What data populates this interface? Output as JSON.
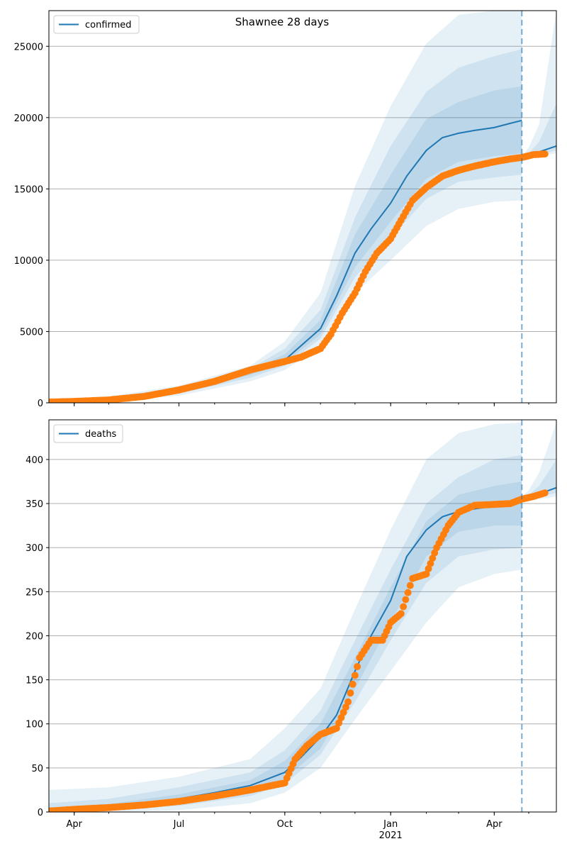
{
  "chart_data": [
    {
      "type": "line",
      "title": "Shawnee 28 days",
      "ylim": [
        0,
        27500
      ],
      "yticks": [
        0,
        5000,
        10000,
        15000,
        20000,
        25000
      ],
      "grid": "y",
      "legend": "top-left",
      "x_start": "2020-03-10",
      "x_end": "2021-05-25",
      "forecast_start": "2021-04-25",
      "xtick_labels": [
        "Apr",
        "Jul",
        "Oct",
        "Jan",
        "Apr"
      ],
      "xtick_sublabels": [
        "",
        "",
        "",
        "2021",
        ""
      ],
      "colors": {
        "model": "#1f77b4",
        "observed": "#ff7f0e"
      },
      "series": [
        {
          "name": "confirmed",
          "kind": "model-median",
          "x": [
            "2020-03-10",
            "2020-04-01",
            "2020-05-01",
            "2020-06-01",
            "2020-07-01",
            "2020-08-01",
            "2020-09-01",
            "2020-10-01",
            "2020-10-15",
            "2020-11-01",
            "2020-11-15",
            "2020-12-01",
            "2020-12-15",
            "2021-01-01",
            "2021-01-15",
            "2021-02-01",
            "2021-02-15",
            "2021-03-01",
            "2021-03-15",
            "2021-04-01",
            "2021-04-15",
            "2021-04-25"
          ],
          "values": [
            50,
            120,
            250,
            450,
            900,
            1600,
            2200,
            3000,
            4000,
            5200,
            7500,
            10500,
            12200,
            14000,
            15900,
            17700,
            18600,
            18900,
            19100,
            19300,
            19600,
            19800
          ]
        },
        {
          "name": "",
          "kind": "model-continuation",
          "x": [
            "2021-04-25",
            "2021-05-01",
            "2021-05-10",
            "2021-05-25"
          ],
          "values": [
            17200,
            17300,
            17600,
            18000
          ]
        },
        {
          "name": "",
          "kind": "observed",
          "x": [
            "2020-03-10",
            "2020-04-01",
            "2020-05-01",
            "2020-06-01",
            "2020-07-01",
            "2020-08-01",
            "2020-09-01",
            "2020-10-01",
            "2020-10-15",
            "2020-11-01",
            "2020-11-10",
            "2020-11-20",
            "2020-12-01",
            "2020-12-10",
            "2020-12-20",
            "2021-01-01",
            "2021-01-10",
            "2021-01-20",
            "2021-02-01",
            "2021-02-15",
            "2021-03-01",
            "2021-03-15",
            "2021-04-01",
            "2021-04-15",
            "2021-04-25",
            "2021-05-05",
            "2021-05-15"
          ],
          "values": [
            50,
            100,
            200,
            450,
            900,
            1500,
            2300,
            2900,
            3200,
            3800,
            4800,
            6300,
            7700,
            9200,
            10500,
            11500,
            12800,
            14200,
            15100,
            15900,
            16300,
            16600,
            16900,
            17100,
            17200,
            17400,
            17450
          ]
        }
      ],
      "bands": [
        {
          "x": [
            "2020-03-10",
            "2020-05-01",
            "2020-07-01",
            "2020-09-01",
            "2020-10-01",
            "2020-11-01",
            "2020-12-01",
            "2021-01-01",
            "2021-02-01",
            "2021-03-01",
            "2021-04-01",
            "2021-04-25"
          ],
          "lower": [
            0,
            150,
            500,
            1500,
            2300,
            4000,
            7700,
            10000,
            12400,
            13600,
            14100,
            14200
          ],
          "upper": [
            200,
            450,
            1200,
            2600,
            4300,
            7700,
            15200,
            20800,
            25200,
            27200,
            27500,
            27500
          ],
          "opacity": 0.11
        },
        {
          "x": [
            "2020-03-10",
            "2020-05-01",
            "2020-07-01",
            "2020-09-01",
            "2020-10-01",
            "2020-11-01",
            "2020-12-01",
            "2021-01-01",
            "2021-02-01",
            "2021-03-01",
            "2021-04-01",
            "2021-04-25"
          ],
          "lower": [
            20,
            190,
            650,
            1750,
            2600,
            4500,
            8800,
            11600,
            14300,
            15500,
            15800,
            16000
          ],
          "upper": [
            150,
            370,
            1050,
            2400,
            3800,
            6500,
            13000,
            18000,
            21800,
            23500,
            24300,
            24800
          ],
          "opacity": 0.11
        },
        {
          "x": [
            "2020-03-10",
            "2020-05-01",
            "2020-07-01",
            "2020-09-01",
            "2020-10-01",
            "2020-11-01",
            "2020-12-01",
            "2021-01-01",
            "2021-02-01",
            "2021-03-01",
            "2021-04-01",
            "2021-04-25"
          ],
          "lower": [
            35,
            215,
            770,
            1950,
            2800,
            4800,
            9500,
            12700,
            15700,
            16900,
            17300,
            17500
          ],
          "upper": [
            100,
            310,
            950,
            2250,
            3400,
            5800,
            11800,
            16000,
            19900,
            21100,
            21900,
            22200
          ],
          "opacity": 0.11
        },
        {
          "x": [
            "2021-04-25",
            "2021-05-01",
            "2021-05-10",
            "2021-05-25"
          ],
          "lower": [
            17100,
            17150,
            17300,
            17500
          ],
          "upper": [
            17300,
            17900,
            19500,
            27500
          ],
          "opacity": 0.11
        },
        {
          "x": [
            "2021-04-25",
            "2021-05-01",
            "2021-05-10",
            "2021-05-25"
          ],
          "lower": [
            17150,
            17200,
            17400,
            17700
          ],
          "upper": [
            17250,
            17500,
            18300,
            21000
          ],
          "opacity": 0.11
        }
      ]
    },
    {
      "type": "line",
      "title": "",
      "ylim": [
        0,
        445
      ],
      "yticks": [
        0,
        50,
        100,
        150,
        200,
        250,
        300,
        350,
        400
      ],
      "grid": "y",
      "legend": "top-left",
      "x_start": "2020-03-10",
      "x_end": "2021-05-25",
      "forecast_start": "2021-04-25",
      "xtick_labels": [
        "Apr",
        "Jul",
        "Oct",
        "Jan",
        "Apr"
      ],
      "xtick_sublabels": [
        "",
        "",
        "",
        "2021",
        ""
      ],
      "colors": {
        "model": "#1f77b4",
        "observed": "#ff7f0e"
      },
      "series": [
        {
          "name": "deaths",
          "kind": "model-median",
          "x": [
            "2020-03-10",
            "2020-04-01",
            "2020-05-01",
            "2020-06-01",
            "2020-07-01",
            "2020-08-01",
            "2020-09-01",
            "2020-10-01",
            "2020-10-15",
            "2020-11-01",
            "2020-11-15",
            "2020-12-01",
            "2020-12-15",
            "2021-01-01",
            "2021-01-15",
            "2021-02-01",
            "2021-02-15",
            "2021-03-01",
            "2021-03-15",
            "2021-04-01",
            "2021-04-15",
            "2021-04-25"
          ],
          "values": [
            1,
            2,
            5,
            8,
            15,
            22,
            30,
            45,
            62,
            85,
            110,
            160,
            200,
            240,
            290,
            320,
            335,
            341,
            344,
            347,
            350,
            353
          ],
          "labels": []
        },
        {
          "name": "",
          "kind": "model-continuation",
          "x": [
            "2021-04-25",
            "2021-05-01",
            "2021-05-10",
            "2021-05-25"
          ],
          "values": [
            355,
            357,
            361,
            368
          ]
        },
        {
          "name": "",
          "kind": "observed",
          "x": [
            "2020-03-10",
            "2020-04-01",
            "2020-05-01",
            "2020-06-01",
            "2020-07-01",
            "2020-08-01",
            "2020-09-01",
            "2020-10-01",
            "2020-10-10",
            "2020-10-20",
            "2020-11-01",
            "2020-11-15",
            "2020-11-25",
            "2020-12-05",
            "2020-12-15",
            "2020-12-25",
            "2021-01-01",
            "2021-01-10",
            "2021-01-20",
            "2021-02-01",
            "2021-02-10",
            "2021-02-20",
            "2021-03-01",
            "2021-03-15",
            "2021-04-01",
            "2021-04-15",
            "2021-04-25",
            "2021-05-05",
            "2021-05-15"
          ],
          "values": [
            1,
            3,
            5,
            8,
            12,
            18,
            25,
            33,
            60,
            75,
            88,
            95,
            125,
            175,
            195,
            195,
            215,
            225,
            265,
            270,
            300,
            325,
            340,
            348,
            349,
            350,
            355,
            358,
            362
          ]
        }
      ],
      "bands": [
        {
          "x": [
            "2020-03-10",
            "2020-05-01",
            "2020-07-01",
            "2020-09-01",
            "2020-10-01",
            "2020-11-01",
            "2020-12-01",
            "2021-01-01",
            "2021-02-01",
            "2021-03-01",
            "2021-04-01",
            "2021-04-25"
          ],
          "lower": [
            0,
            0,
            2,
            10,
            22,
            50,
            105,
            160,
            215,
            255,
            270,
            275
          ],
          "upper": [
            25,
            28,
            40,
            60,
            95,
            140,
            230,
            320,
            400,
            430,
            440,
            442
          ],
          "opacity": 0.11
        },
        {
          "x": [
            "2020-03-10",
            "2020-05-01",
            "2020-07-01",
            "2020-09-01",
            "2020-10-01",
            "2020-11-01",
            "2020-12-01",
            "2021-01-01",
            "2021-02-01",
            "2021-03-01",
            "2021-04-01",
            "2021-04-25"
          ],
          "lower": [
            0,
            2,
            7,
            18,
            32,
            65,
            125,
            195,
            260,
            290,
            298,
            300
          ],
          "upper": [
            10,
            15,
            28,
            45,
            70,
            115,
            195,
            275,
            350,
            380,
            400,
            405
          ],
          "opacity": 0.11
        },
        {
          "x": [
            "2020-03-10",
            "2020-05-01",
            "2020-07-01",
            "2020-09-01",
            "2020-10-01",
            "2020-11-01",
            "2020-12-01",
            "2021-01-01",
            "2021-02-01",
            "2021-03-01",
            "2021-04-01",
            "2021-04-25"
          ],
          "lower": [
            0,
            3,
            10,
            22,
            38,
            72,
            140,
            215,
            290,
            318,
            325,
            325
          ],
          "upper": [
            5,
            9,
            20,
            36,
            58,
            100,
            175,
            255,
            330,
            360,
            370,
            375
          ],
          "opacity": 0.11
        },
        {
          "x": [
            "2021-04-25",
            "2021-05-01",
            "2021-05-10",
            "2021-05-25"
          ],
          "lower": [
            352,
            353,
            355,
            358
          ],
          "upper": [
            358,
            365,
            385,
            442
          ],
          "opacity": 0.11
        },
        {
          "x": [
            "2021-04-25",
            "2021-05-01",
            "2021-05-10",
            "2021-05-25"
          ],
          "lower": [
            354,
            356,
            358,
            362
          ],
          "upper": [
            356,
            360,
            370,
            400
          ],
          "opacity": 0.11
        }
      ]
    }
  ]
}
